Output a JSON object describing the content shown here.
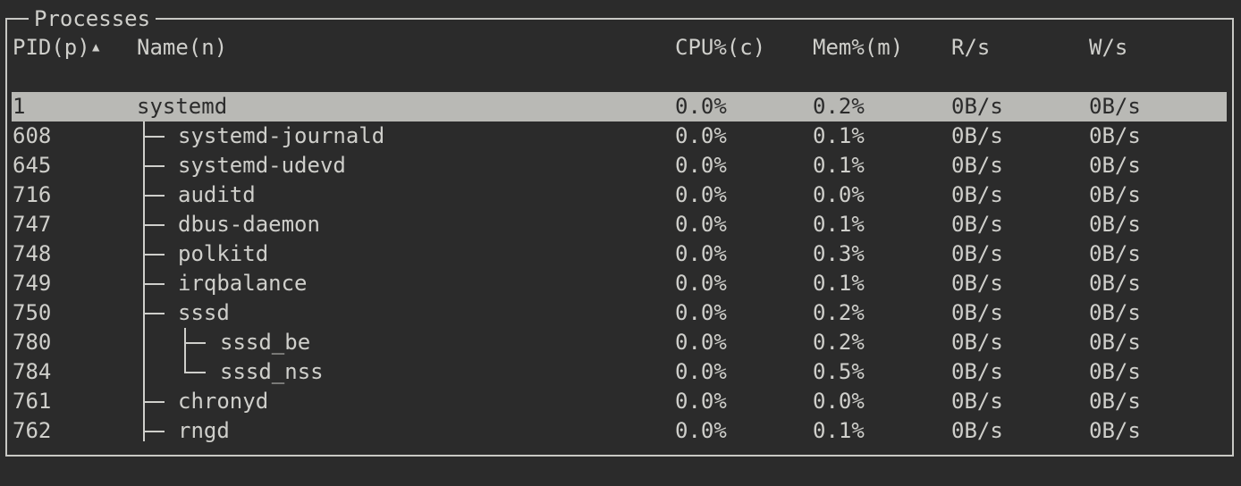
{
  "panel": {
    "title": "Processes"
  },
  "columns": {
    "pid": "PID(p)",
    "sort_indicator": "▲",
    "name": "Name(n)",
    "cpu": "CPU%(c)",
    "mem": "Mem%(m)",
    "read": "R/s",
    "write": "W/s"
  },
  "colors": {
    "background": "#2b2b2b",
    "text": "#cfcfcb",
    "selected_row": "#b9b9b5"
  },
  "processes": [
    {
      "pid": "1",
      "name": "systemd",
      "cpu": "0.0%",
      "mem": "0.2%",
      "read": "0B/s",
      "write": "0B/s",
      "depth": 0,
      "selected": true
    },
    {
      "pid": "608",
      "name": "systemd-journald",
      "cpu": "0.0%",
      "mem": "0.1%",
      "read": "0B/s",
      "write": "0B/s",
      "depth": 1
    },
    {
      "pid": "645",
      "name": "systemd-udevd",
      "cpu": "0.0%",
      "mem": "0.1%",
      "read": "0B/s",
      "write": "0B/s",
      "depth": 1
    },
    {
      "pid": "716",
      "name": "auditd",
      "cpu": "0.0%",
      "mem": "0.0%",
      "read": "0B/s",
      "write": "0B/s",
      "depth": 1
    },
    {
      "pid": "747",
      "name": "dbus-daemon",
      "cpu": "0.0%",
      "mem": "0.1%",
      "read": "0B/s",
      "write": "0B/s",
      "depth": 1
    },
    {
      "pid": "748",
      "name": "polkitd",
      "cpu": "0.0%",
      "mem": "0.3%",
      "read": "0B/s",
      "write": "0B/s",
      "depth": 1
    },
    {
      "pid": "749",
      "name": "irqbalance",
      "cpu": "0.0%",
      "mem": "0.1%",
      "read": "0B/s",
      "write": "0B/s",
      "depth": 1
    },
    {
      "pid": "750",
      "name": "sssd",
      "cpu": "0.0%",
      "mem": "0.2%",
      "read": "0B/s",
      "write": "0B/s",
      "depth": 1
    },
    {
      "pid": "780",
      "name": "sssd_be",
      "cpu": "0.0%",
      "mem": "0.2%",
      "read": "0B/s",
      "write": "0B/s",
      "depth": 2
    },
    {
      "pid": "784",
      "name": "sssd_nss",
      "cpu": "0.0%",
      "mem": "0.5%",
      "read": "0B/s",
      "write": "0B/s",
      "depth": 2,
      "last": true
    },
    {
      "pid": "761",
      "name": "chronyd",
      "cpu": "0.0%",
      "mem": "0.0%",
      "read": "0B/s",
      "write": "0B/s",
      "depth": 1
    },
    {
      "pid": "762",
      "name": "rngd",
      "cpu": "0.0%",
      "mem": "0.1%",
      "read": "0B/s",
      "write": "0B/s",
      "depth": 1
    }
  ]
}
